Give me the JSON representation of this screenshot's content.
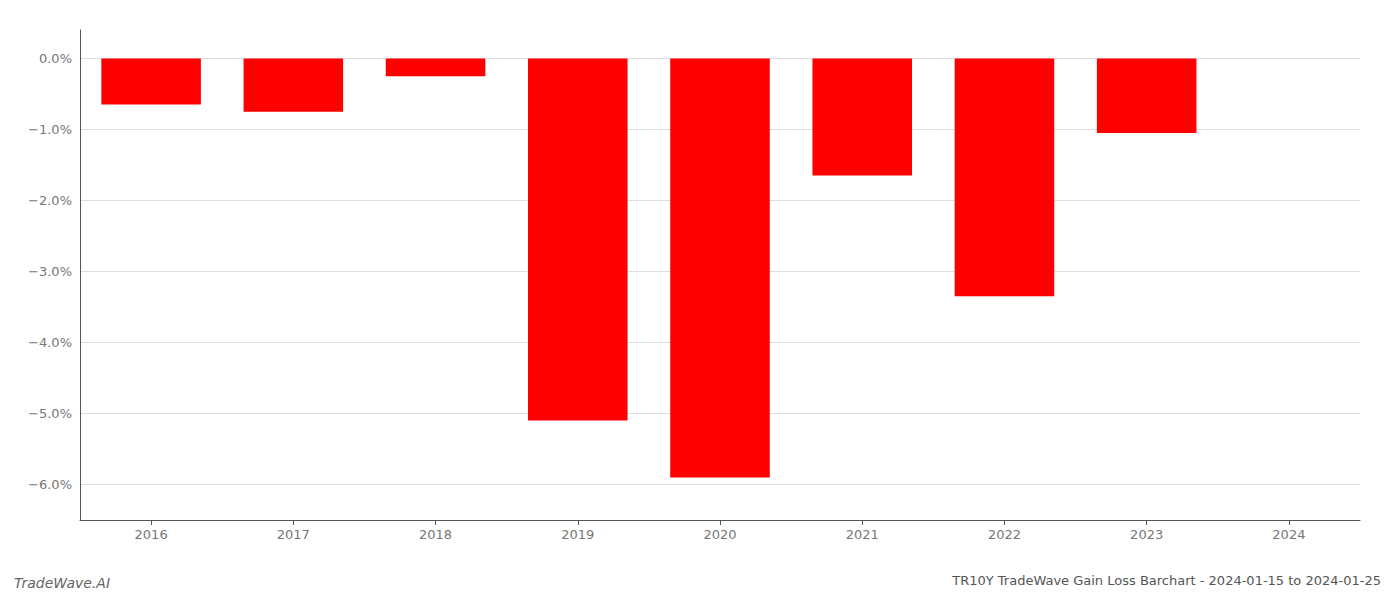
{
  "chart_data": {
    "type": "bar",
    "title": "TR10Y TradeWave Gain Loss Barchart - 2024-01-15 to 2024-01-25",
    "annotations": [
      "TradeWave.AI"
    ],
    "categories": [
      "2016",
      "2017",
      "2018",
      "2019",
      "2020",
      "2021",
      "2022",
      "2023",
      "2024"
    ],
    "values": [
      -0.65,
      -0.75,
      -0.25,
      -5.1,
      -5.9,
      -1.65,
      -3.35,
      -1.05,
      0.0
    ],
    "color": "#ff0000",
    "ylim": [
      -6.5,
      0.4
    ],
    "yticks": [
      {
        "value": 0.0,
        "label": "0.0%"
      },
      {
        "value": -1.0,
        "label": "−1.0%"
      },
      {
        "value": -2.0,
        "label": "−2.0%"
      },
      {
        "value": -3.0,
        "label": "−3.0%"
      },
      {
        "value": -4.0,
        "label": "−4.0%"
      },
      {
        "value": -5.0,
        "label": "−5.0%"
      },
      {
        "value": -6.0,
        "label": "−6.0%"
      }
    ],
    "grid": true
  }
}
